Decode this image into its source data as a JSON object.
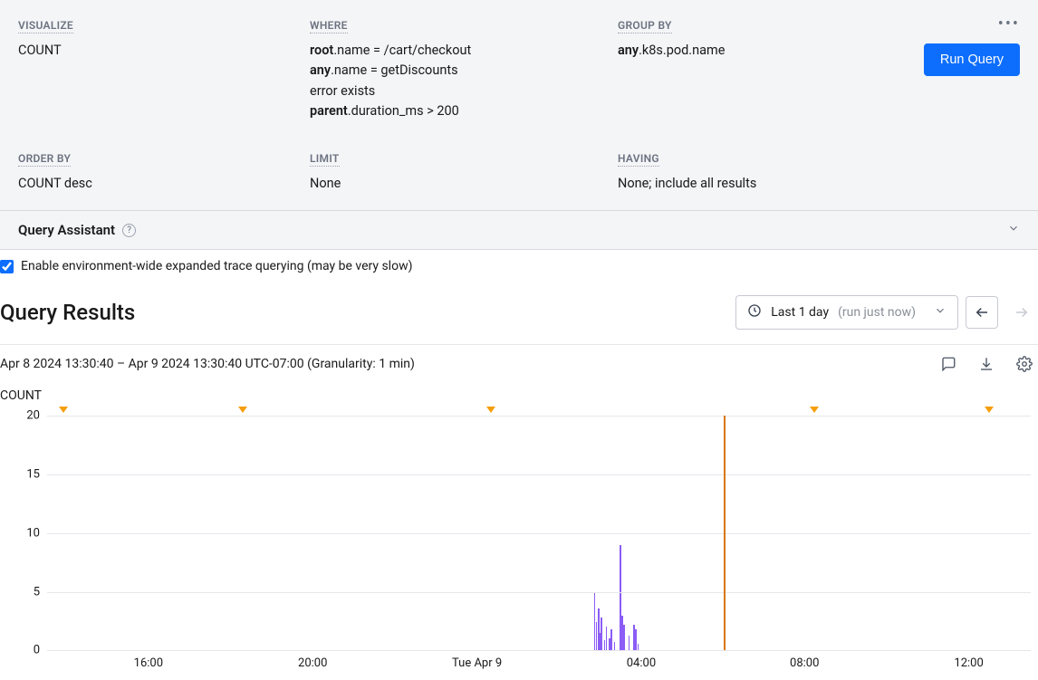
{
  "query": {
    "visualize": {
      "label": "VISUALIZE",
      "value": "COUNT"
    },
    "where": {
      "label": "WHERE",
      "clauses": [
        {
          "prefix": "root",
          "rest": ".name = /cart/checkout"
        },
        {
          "prefix": "any",
          "rest": ".name = getDiscounts"
        },
        {
          "prefix": "",
          "rest": "error exists"
        },
        {
          "prefix": "parent",
          "rest": ".duration_ms > 200"
        }
      ]
    },
    "groupby": {
      "label": "GROUP BY",
      "prefix": "any",
      "rest": ".k8s.pod.name"
    },
    "orderby": {
      "label": "ORDER BY",
      "value": "COUNT desc"
    },
    "limit": {
      "label": "LIMIT",
      "value": "None"
    },
    "having": {
      "label": "HAVING",
      "value": "None; include all results"
    },
    "run_button": "Run Query"
  },
  "assistant": {
    "title": "Query Assistant"
  },
  "enable_trace": {
    "checked": true,
    "label": "Enable environment-wide expanded trace querying (may be very slow)"
  },
  "results": {
    "title": "Query Results",
    "time_picker": {
      "range": "Last 1 day",
      "note": "(run just now)"
    },
    "timestamp": "Apr 8 2024 13:30:40 – Apr 9 2024 13:30:40 UTC-07:00 (Granularity: 1 min)"
  },
  "chart": {
    "title": "COUNT",
    "ymax": 20,
    "yticks": [
      0,
      5,
      10,
      15,
      20
    ],
    "xticks": [
      {
        "pos": 0.103,
        "label": "16:00"
      },
      {
        "pos": 0.27,
        "label": "20:00"
      },
      {
        "pos": 0.437,
        "label": "Tue Apr 9"
      },
      {
        "pos": 0.604,
        "label": "04:00"
      },
      {
        "pos": 0.77,
        "label": "08:00"
      },
      {
        "pos": 0.937,
        "label": "12:00"
      }
    ],
    "markers": [
      0.017,
      0.199,
      0.451,
      0.78,
      0.958
    ],
    "vertical_line": {
      "pos": 0.688,
      "color": "#d97706"
    },
    "series_color": "#8b5cf6",
    "grid_color": "#e5e7eb",
    "bars": [
      {
        "x": 0.556,
        "h": 5.0
      },
      {
        "x": 0.558,
        "h": 2.4
      },
      {
        "x": 0.56,
        "h": 3.6
      },
      {
        "x": 0.562,
        "h": 1.5
      },
      {
        "x": 0.563,
        "h": 2.8
      },
      {
        "x": 0.566,
        "h": 0.9
      },
      {
        "x": 0.568,
        "h": 2.0
      },
      {
        "x": 0.571,
        "h": 1.0
      },
      {
        "x": 0.573,
        "h": 1.8
      },
      {
        "x": 0.576,
        "h": 0.7
      },
      {
        "x": 0.582,
        "h": 9.0
      },
      {
        "x": 0.584,
        "h": 3.0
      },
      {
        "x": 0.586,
        "h": 2.2
      },
      {
        "x": 0.591,
        "h": 1.3
      },
      {
        "x": 0.596,
        "h": 2.2
      },
      {
        "x": 0.598,
        "h": 1.8
      },
      {
        "x": 0.6,
        "h": 0.6
      }
    ]
  }
}
